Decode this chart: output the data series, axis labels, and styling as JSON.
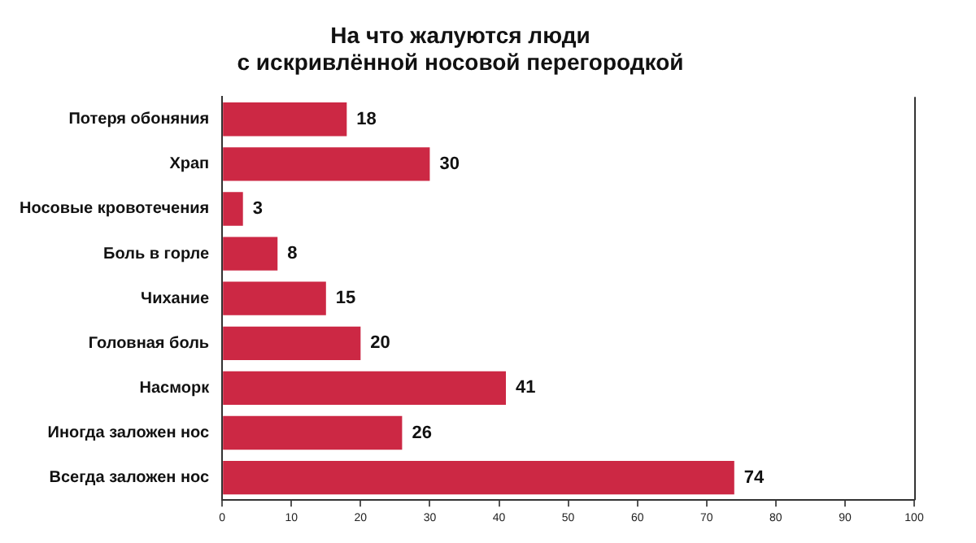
{
  "chart_data": {
    "type": "bar",
    "orientation": "horizontal",
    "title": "На что жалуются люди\nс искривлённой носовой перегородкой",
    "categories": [
      "Потеря обоняния",
      "Храп",
      "Носовые кровотечения",
      "Боль в горле",
      "Чихание",
      "Головная боль",
      "Насморк",
      "Иногда заложен нос",
      "Всегда заложен нос"
    ],
    "values": [
      18,
      30,
      3,
      8,
      15,
      20,
      41,
      26,
      74
    ],
    "color": "#cc2844",
    "xlim": [
      0,
      100
    ],
    "xticks": [
      0,
      10,
      20,
      30,
      40,
      50,
      60,
      70,
      80,
      90,
      100
    ],
    "grid": false,
    "legend": false,
    "data_labels": true
  }
}
